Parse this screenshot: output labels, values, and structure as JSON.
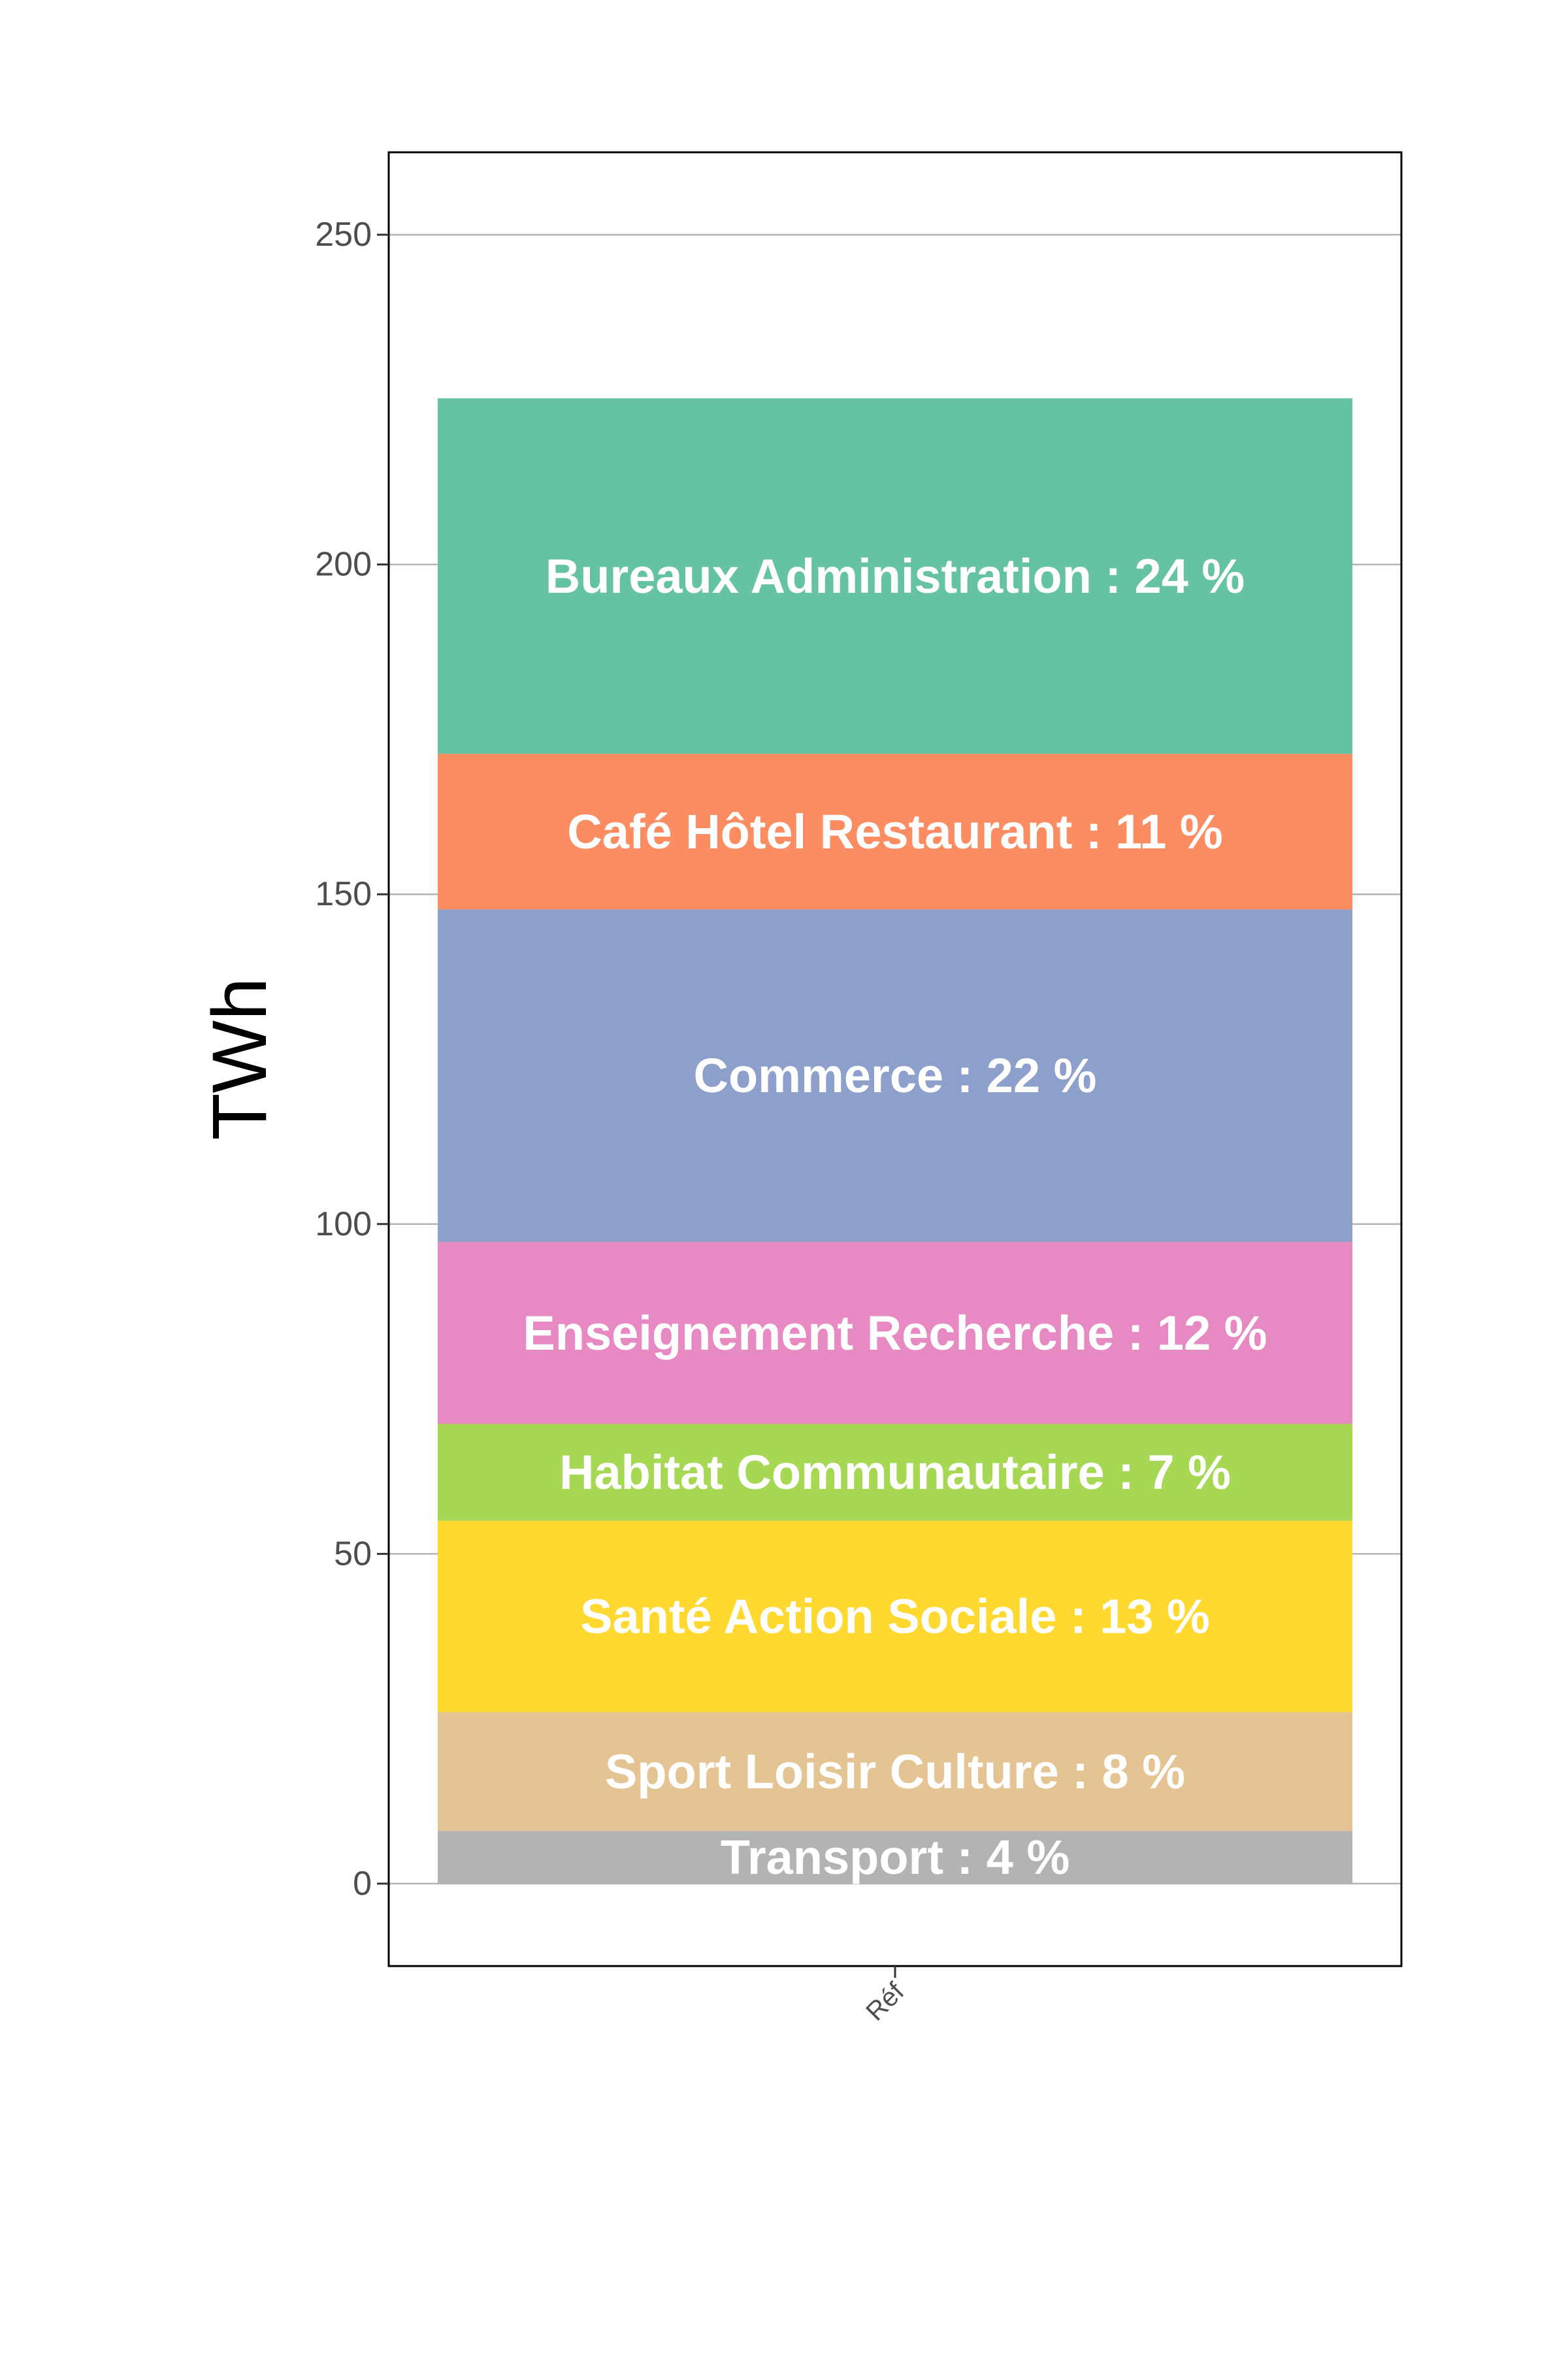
{
  "chart_data": {
    "type": "bar",
    "stacked": true,
    "categories": [
      "Réf"
    ],
    "ylabel": "TWh",
    "xlabel": "",
    "ylim": [
      -12.5,
      262.5
    ],
    "yticks": [
      0,
      50,
      100,
      150,
      200,
      250
    ],
    "grid": "horizontal",
    "series": [
      {
        "name": "Transport",
        "values": [
          8
        ],
        "label": "Transport : 4 %",
        "color": "#B3B3B3"
      },
      {
        "name": "Sport Loisir Culture",
        "values": [
          18
        ],
        "label": "Sport Loisir Culture : 8 %",
        "color": "#E5C494"
      },
      {
        "name": "Santé Action Sociale",
        "values": [
          29
        ],
        "label": "Santé Action Sociale : 13 %",
        "color": "#FFD92F"
      },
      {
        "name": "Habitat Communautaire",
        "values": [
          14.7
        ],
        "label": "Habitat Communautaire : 7 %",
        "color": "#A6D854"
      },
      {
        "name": "Enseignement Recherche",
        "values": [
          27.6
        ],
        "label": "Enseignement Recherche : 12 %",
        "color": "#E78AC3"
      },
      {
        "name": "Commerce",
        "values": [
          50.4
        ],
        "label": "Commerce : 22 %",
        "color": "#8DA0CB"
      },
      {
        "name": "Café Hôtel Restaurant",
        "values": [
          23.6
        ],
        "label": "Café Hôtel Restaurant : 11 %",
        "color": "#FC8D62"
      },
      {
        "name": "Bureaux Administration",
        "values": [
          53.9
        ],
        "label": "Bureaux Administration : 24 %",
        "color": "#66C2A5"
      }
    ]
  }
}
